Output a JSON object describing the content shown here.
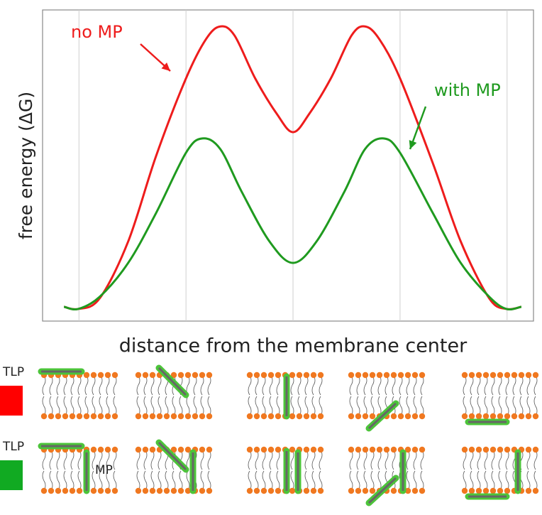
{
  "chart_data": {
    "type": "line",
    "ylabel": "free energy (ΔG)",
    "xlabel": "distance from the membrane center",
    "xlim": [
      -351,
      337
    ],
    "ylim": [
      0,
      100
    ],
    "xticks": [
      -300,
      -150,
      0,
      150,
      300
    ],
    "grid": true,
    "series": [
      {
        "name": "no MP",
        "color": "#ee1c1c",
        "x": [
          -321,
          -301,
          -271,
          -231,
          -192,
          -150,
          -122,
          -102,
          -82,
          -53,
          -23,
          0,
          23,
          53,
          82,
          101,
          121,
          150,
          196,
          235,
          275,
          299,
          320
        ],
        "values": [
          4.6,
          3.9,
          7.3,
          25.6,
          53,
          78,
          90.6,
          94.7,
          91.8,
          78,
          66.7,
          60.7,
          66.7,
          78,
          91.8,
          94.7,
          90.6,
          78,
          50.7,
          25.6,
          7.3,
          3.9,
          4.6
        ]
      },
      {
        "name": "with MP",
        "color": "#1f9a1f",
        "x": [
          -321,
          -301,
          -271,
          -231,
          -192,
          -150,
          -127,
          -102,
          -72,
          -33,
          0,
          33,
          72,
          101,
          127,
          150,
          196,
          235,
          275,
          299,
          320
        ],
        "values": [
          4.6,
          3.9,
          7.8,
          18.7,
          34.7,
          54.1,
          58.7,
          55.3,
          41.6,
          25.6,
          18.7,
          25.6,
          41.6,
          55.3,
          58.7,
          54.1,
          34.7,
          18.7,
          7.8,
          3.9,
          4.6
        ]
      }
    ]
  },
  "illustration": {
    "rows": [
      {
        "label": "TLP",
        "color": "#ff0000"
      },
      {
        "label": "TLP",
        "color": "#11aa22"
      }
    ],
    "mp_label": "MP"
  }
}
